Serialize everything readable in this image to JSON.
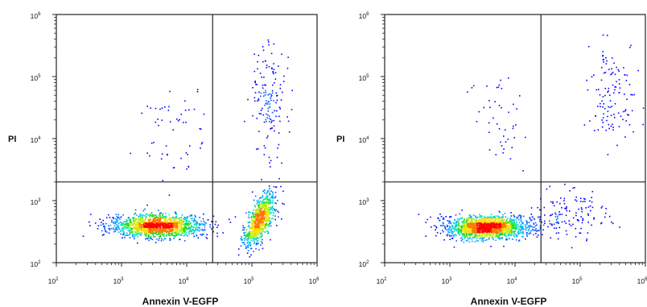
{
  "chart_data": [
    {
      "type": "scatter",
      "xlabel": "Annexin V-EGFP",
      "ylabel": "PI",
      "x_scale": "log",
      "y_scale": "log",
      "xlim": [
        100,
        1000000
      ],
      "ylim": [
        100,
        1000000
      ],
      "x_ticks": [
        {
          "base": "10",
          "exp": "2"
        },
        {
          "base": "10",
          "exp": "3"
        },
        {
          "base": "10",
          "exp": "4"
        },
        {
          "base": "10",
          "exp": "5"
        },
        {
          "base": "10",
          "exp": "6"
        }
      ],
      "y_ticks": [
        {
          "base": "10",
          "exp": "2"
        },
        {
          "base": "10",
          "exp": "3"
        },
        {
          "base": "10",
          "exp": "4"
        },
        {
          "base": "10",
          "exp": "5"
        },
        {
          "base": "10",
          "exp": "6"
        }
      ],
      "gates": {
        "x": 25000,
        "y": 2000
      },
      "populations": [
        {
          "cx": 3500,
          "cy": 400,
          "sx": 0.35,
          "sy": 0.09,
          "n": 1500
        },
        {
          "cx": 130000,
          "cy": 500,
          "sx": 0.12,
          "sy": 0.22,
          "rho": 0.65,
          "n": 850
        },
        {
          "cx": 180000,
          "cy": 40000,
          "sx": 0.15,
          "sy": 0.45,
          "n": 150
        },
        {
          "cx": 6000,
          "cy": 15000,
          "sx": 0.25,
          "sy": 0.4,
          "n": 55
        }
      ]
    },
    {
      "type": "scatter",
      "xlabel": "Annexin V-EGFP",
      "ylabel": "PI",
      "x_scale": "log",
      "y_scale": "log",
      "xlim": [
        100,
        1000000
      ],
      "ylim": [
        100,
        1000000
      ],
      "x_ticks": [
        {
          "base": "10",
          "exp": "2"
        },
        {
          "base": "10",
          "exp": "3"
        },
        {
          "base": "10",
          "exp": "4"
        },
        {
          "base": "10",
          "exp": "5"
        },
        {
          "base": "10",
          "exp": "6"
        }
      ],
      "y_ticks": [
        {
          "base": "10",
          "exp": "2"
        },
        {
          "base": "10",
          "exp": "3"
        },
        {
          "base": "10",
          "exp": "4"
        },
        {
          "base": "10",
          "exp": "5"
        },
        {
          "base": "10",
          "exp": "6"
        }
      ],
      "gates": {
        "x": 25000,
        "y": 2000
      },
      "populations": [
        {
          "cx": 3800,
          "cy": 380,
          "sx": 0.33,
          "sy": 0.09,
          "n": 1700
        },
        {
          "cx": 60000,
          "cy": 600,
          "sx": 0.3,
          "sy": 0.2,
          "n": 130
        },
        {
          "cx": 300000,
          "cy": 50000,
          "sx": 0.17,
          "sy": 0.4,
          "n": 120
        },
        {
          "cx": 6000,
          "cy": 20000,
          "sx": 0.2,
          "sy": 0.4,
          "n": 45
        }
      ]
    }
  ]
}
